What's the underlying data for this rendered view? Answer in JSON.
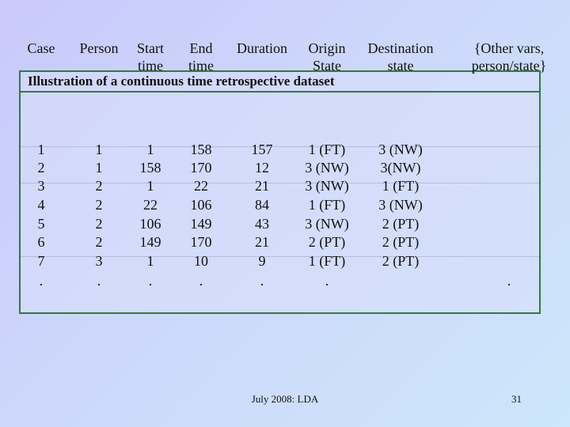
{
  "slide": {
    "title": "Illustration of a continuous time retrospective dataset",
    "footer": "July 2008: LDA",
    "page_number": "31"
  },
  "table": {
    "headers": [
      [
        "Case"
      ],
      [
        "Person"
      ],
      [
        "Start",
        "time"
      ],
      [
        "End",
        "time"
      ],
      [
        "Duration"
      ],
      [
        "Origin",
        "State"
      ],
      [
        "Destination",
        "state"
      ],
      [
        "{Other vars,",
        "person/state}"
      ]
    ],
    "rows": [
      [
        "1",
        "1",
        "1",
        "158",
        "157",
        "1 (FT)",
        "3 (NW)",
        ""
      ],
      [
        "2",
        "1",
        "158",
        "170",
        "12",
        "3 (NW)",
        "3(NW)",
        ""
      ],
      [
        "3",
        "2",
        "1",
        "22",
        "21",
        "3 (NW)",
        "1 (FT)",
        ""
      ],
      [
        "4",
        "2",
        "22",
        "106",
        "84",
        "1 (FT)",
        "3 (NW)",
        ""
      ],
      [
        "5",
        "2",
        "106",
        "149",
        "43",
        "3 (NW)",
        "2 (PT)",
        ""
      ],
      [
        "6",
        "2",
        "149",
        "170",
        "21",
        "2 (PT)",
        "2 (PT)",
        ""
      ],
      [
        "7",
        "3",
        "1",
        "10",
        "9",
        "1 (FT)",
        "2 (PT)",
        ""
      ],
      [
        ".",
        ".",
        ".",
        ".",
        ".",
        ".",
        "",
        "."
      ]
    ]
  },
  "colors": {
    "border": "#2e7d3a"
  }
}
